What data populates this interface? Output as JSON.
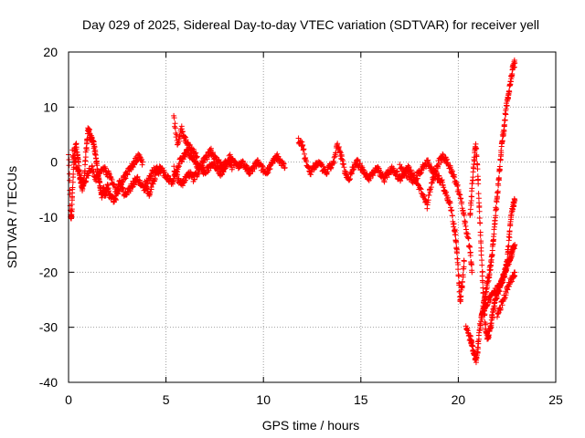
{
  "chart_data": {
    "type": "scatter",
    "title": "Day 029 of 2025, Sidereal Day-to-day VTEC variation (SDTVAR) for receiver yell",
    "xlabel": "GPS time / hours",
    "ylabel": "SDTVAR / TECUs",
    "xlim": [
      0,
      25
    ],
    "ylim": [
      -40,
      20
    ],
    "xticks": [
      0,
      5,
      10,
      15,
      20,
      25
    ],
    "yticks": [
      -40,
      -30,
      -20,
      -10,
      0,
      10,
      20
    ],
    "grid": true,
    "marker": "+",
    "colors": {
      "series": "#ff0000",
      "grid": "#a0a0a0",
      "axis": "#000000"
    },
    "series": [
      {
        "name": "SDTVAR",
        "tracks": [
          [
            [
              0.0,
              3
            ],
            [
              0.1,
              -10
            ],
            [
              0.15,
              -10
            ],
            [
              0.2,
              -5
            ],
            [
              0.3,
              2
            ],
            [
              0.4,
              3
            ],
            [
              0.5,
              0
            ],
            [
              0.6,
              -3
            ],
            [
              0.7,
              -5
            ],
            [
              0.8,
              -3
            ],
            [
              0.9,
              2
            ],
            [
              1.0,
              6
            ],
            [
              1.1,
              5
            ],
            [
              1.2,
              4
            ],
            [
              1.3,
              3
            ],
            [
              1.4,
              1
            ],
            [
              1.5,
              -2
            ],
            [
              1.6,
              -4
            ],
            [
              1.7,
              -6
            ],
            [
              1.8,
              -5
            ],
            [
              1.9,
              -6
            ],
            [
              2.0,
              -4
            ],
            [
              2.1,
              -6
            ],
            [
              2.3,
              -7
            ],
            [
              2.5,
              -6
            ],
            [
              2.7,
              -4
            ],
            [
              2.9,
              -6
            ],
            [
              3.1,
              -5
            ],
            [
              3.3,
              -4
            ],
            [
              3.5,
              -3
            ],
            [
              3.7,
              -4
            ],
            [
              3.9,
              -5
            ],
            [
              4.1,
              -3
            ],
            [
              4.3,
              -2
            ],
            [
              4.5,
              -1
            ],
            [
              4.7,
              -2
            ]
          ],
          [
            [
              0.2,
              2
            ],
            [
              0.4,
              -1
            ],
            [
              0.6,
              -3
            ],
            [
              0.8,
              -4
            ],
            [
              1.0,
              -2
            ],
            [
              1.2,
              -1
            ],
            [
              1.4,
              -3
            ],
            [
              1.6,
              -2
            ],
            [
              1.8,
              -1
            ],
            [
              2.0,
              -2
            ],
            [
              2.2,
              -3
            ],
            [
              2.4,
              -5
            ],
            [
              2.6,
              -4
            ],
            [
              2.8,
              -3
            ],
            [
              3.0,
              -2
            ],
            [
              3.2,
              -1
            ],
            [
              3.4,
              0
            ],
            [
              3.6,
              1
            ],
            [
              3.8,
              0
            ]
          ],
          [
            [
              3.9,
              -4
            ],
            [
              4.1,
              -6
            ],
            [
              4.3,
              -4
            ],
            [
              4.5,
              -2
            ],
            [
              4.7,
              -1
            ],
            [
              4.9,
              -2
            ],
            [
              5.1,
              -3
            ],
            [
              5.3,
              -4
            ],
            [
              5.5,
              -2
            ],
            [
              5.7,
              0
            ],
            [
              5.9,
              1
            ],
            [
              6.1,
              2
            ],
            [
              6.3,
              1
            ],
            [
              6.5,
              0
            ],
            [
              6.7,
              -1
            ],
            [
              6.9,
              0
            ],
            [
              7.1,
              1
            ],
            [
              7.3,
              2
            ],
            [
              7.5,
              1
            ],
            [
              7.7,
              0
            ],
            [
              7.9,
              -1
            ],
            [
              8.1,
              0
            ],
            [
              8.3,
              1
            ],
            [
              8.5,
              0
            ],
            [
              8.7,
              -1
            ],
            [
              8.9,
              0
            ],
            [
              9.1,
              -1
            ],
            [
              9.3,
              -2
            ],
            [
              9.5,
              -1
            ],
            [
              9.7,
              0
            ],
            [
              9.9,
              -1
            ],
            [
              10.1,
              -2
            ],
            [
              10.3,
              -1
            ],
            [
              10.5,
              0
            ],
            [
              10.7,
              1
            ],
            [
              10.9,
              0
            ],
            [
              11.1,
              -1
            ]
          ],
          [
            [
              5.4,
              -1
            ],
            [
              5.6,
              -3
            ],
            [
              5.8,
              -4
            ],
            [
              6.0,
              -3
            ],
            [
              6.2,
              -2
            ],
            [
              6.4,
              -3
            ],
            [
              6.6,
              -2
            ],
            [
              6.8,
              -1
            ],
            [
              7.0,
              -2
            ],
            [
              7.2,
              -1
            ],
            [
              7.4,
              0
            ],
            [
              7.6,
              -1
            ],
            [
              7.8,
              -2
            ],
            [
              8.0,
              -1
            ],
            [
              8.2,
              0
            ],
            [
              8.4,
              -1
            ]
          ],
          [
            [
              5.4,
              8
            ],
            [
              5.6,
              3
            ],
            [
              5.8,
              6
            ],
            [
              6.0,
              4
            ],
            [
              6.2,
              3
            ],
            [
              6.4,
              2
            ],
            [
              6.6,
              1
            ]
          ],
          [
            [
              11.8,
              4
            ],
            [
              12.0,
              3
            ],
            [
              12.2,
              0
            ],
            [
              12.4,
              -2
            ],
            [
              12.6,
              -1
            ],
            [
              12.8,
              0
            ],
            [
              13.0,
              -1
            ],
            [
              13.2,
              -2
            ],
            [
              13.4,
              -1
            ],
            [
              13.6,
              0
            ],
            [
              13.8,
              3
            ],
            [
              14.0,
              1
            ],
            [
              14.2,
              -2
            ],
            [
              14.4,
              -3
            ],
            [
              14.6,
              -1
            ],
            [
              14.8,
              0
            ],
            [
              15.0,
              -1
            ],
            [
              15.2,
              -2
            ],
            [
              15.4,
              -3
            ],
            [
              15.6,
              -2
            ],
            [
              15.8,
              -1
            ],
            [
              16.0,
              -2
            ],
            [
              16.2,
              -3
            ],
            [
              16.4,
              -2
            ],
            [
              16.6,
              -1
            ],
            [
              16.8,
              -2
            ],
            [
              17.0,
              -3
            ],
            [
              17.2,
              -2
            ],
            [
              17.4,
              -1
            ],
            [
              17.6,
              -2
            ],
            [
              17.8,
              -3
            ],
            [
              18.0,
              -2
            ],
            [
              18.2,
              -1
            ],
            [
              18.4,
              0
            ],
            [
              18.6,
              -1
            ],
            [
              18.8,
              -2
            ],
            [
              19.0,
              -3
            ],
            [
              19.2,
              -4
            ],
            [
              19.4,
              -6
            ],
            [
              19.6,
              -8
            ],
            [
              19.8,
              -12
            ],
            [
              19.9,
              -15
            ],
            [
              20.0,
              -20
            ],
            [
              20.1,
              -25
            ],
            [
              20.2,
              -22
            ],
            [
              20.3,
              -18
            ]
          ],
          [
            [
              17.0,
              -1
            ],
            [
              17.3,
              -2
            ],
            [
              17.6,
              -3
            ],
            [
              17.9,
              -4
            ],
            [
              18.2,
              -6
            ],
            [
              18.4,
              -8
            ],
            [
              18.6,
              -4
            ],
            [
              18.8,
              -2
            ],
            [
              19.0,
              0
            ],
            [
              19.2,
              1
            ],
            [
              19.4,
              0
            ],
            [
              19.6,
              -1
            ],
            [
              19.8,
              -3
            ],
            [
              20.0,
              -5
            ],
            [
              20.2,
              -8
            ],
            [
              20.4,
              -12
            ],
            [
              20.6,
              -16
            ],
            [
              20.7,
              -20
            ]
          ],
          [
            [
              20.4,
              -30
            ],
            [
              20.6,
              -32
            ],
            [
              20.7,
              -33
            ],
            [
              20.8,
              -35
            ],
            [
              20.9,
              -36
            ],
            [
              21.0,
              -34
            ],
            [
              21.1,
              -30
            ],
            [
              21.2,
              -28
            ],
            [
              21.3,
              -26
            ],
            [
              21.4,
              -24
            ],
            [
              21.5,
              -22
            ],
            [
              21.6,
              -20
            ],
            [
              21.7,
              -18
            ],
            [
              21.8,
              -14
            ],
            [
              21.9,
              -10
            ],
            [
              22.0,
              -6
            ],
            [
              22.1,
              -2
            ],
            [
              22.2,
              2
            ],
            [
              22.3,
              5
            ],
            [
              22.4,
              8
            ],
            [
              22.5,
              11
            ],
            [
              22.6,
              13
            ],
            [
              22.7,
              15
            ],
            [
              22.8,
              17
            ],
            [
              22.9,
              18
            ]
          ],
          [
            [
              20.6,
              -10
            ],
            [
              20.7,
              -5
            ],
            [
              20.8,
              0
            ],
            [
              20.9,
              3
            ],
            [
              21.0,
              -2
            ],
            [
              21.1,
              -10
            ],
            [
              21.2,
              -18
            ],
            [
              21.3,
              -25
            ],
            [
              21.4,
              -30
            ],
            [
              21.5,
              -32
            ],
            [
              21.6,
              -31
            ],
            [
              21.7,
              -29
            ],
            [
              21.8,
              -27
            ],
            [
              21.9,
              -25
            ],
            [
              22.0,
              -24
            ],
            [
              22.1,
              -23
            ],
            [
              22.2,
              -22
            ],
            [
              22.3,
              -21
            ],
            [
              22.4,
              -20
            ],
            [
              22.5,
              -19
            ],
            [
              22.6,
              -18
            ],
            [
              22.7,
              -17
            ],
            [
              22.8,
              -16
            ],
            [
              22.9,
              -15
            ]
          ],
          [
            [
              21.2,
              -28
            ],
            [
              21.4,
              -26
            ],
            [
              21.6,
              -25
            ],
            [
              21.8,
              -24
            ],
            [
              22.0,
              -23
            ],
            [
              22.2,
              -22
            ],
            [
              22.4,
              -20
            ],
            [
              22.5,
              -18
            ],
            [
              22.6,
              -14
            ],
            [
              22.7,
              -10
            ],
            [
              22.8,
              -8
            ],
            [
              22.9,
              -7
            ]
          ],
          [
            [
              22.0,
              -28
            ],
            [
              22.2,
              -26
            ],
            [
              22.4,
              -24
            ],
            [
              22.6,
              -22
            ],
            [
              22.8,
              -21
            ],
            [
              22.9,
              -20
            ]
          ]
        ]
      }
    ]
  }
}
